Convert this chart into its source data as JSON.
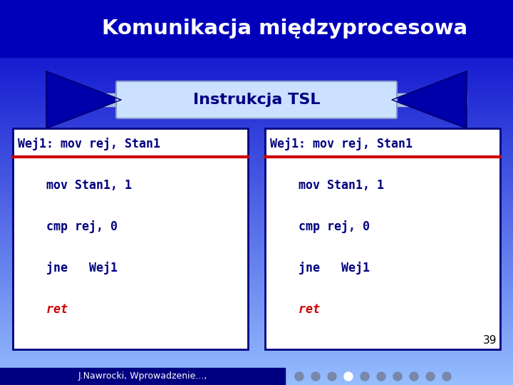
{
  "title": "Komunikacja międzyprocesowa",
  "subtitle": "Instrukcja TSL",
  "box_border_color": "#000080",
  "text_color_dark": "#000080",
  "text_color_red": "#cc0000",
  "footer_bg": "#000080",
  "footer_text": "J.Nawrocki, Wprowadzenie...,",
  "page_number": "39",
  "left_lines": [
    "Wej1: mov rej, Stan1",
    "    mov Stan1, 1",
    "    cmp rej, 0",
    "    jne   Wej1",
    "    ret"
  ],
  "right_lines": [
    "Wej1: mov rej, Stan1",
    "    mov Stan1, 1",
    "    cmp rej, 0",
    "    jne   Wej1",
    "    ret"
  ],
  "dot_count": 10,
  "white_dot_index": 3
}
